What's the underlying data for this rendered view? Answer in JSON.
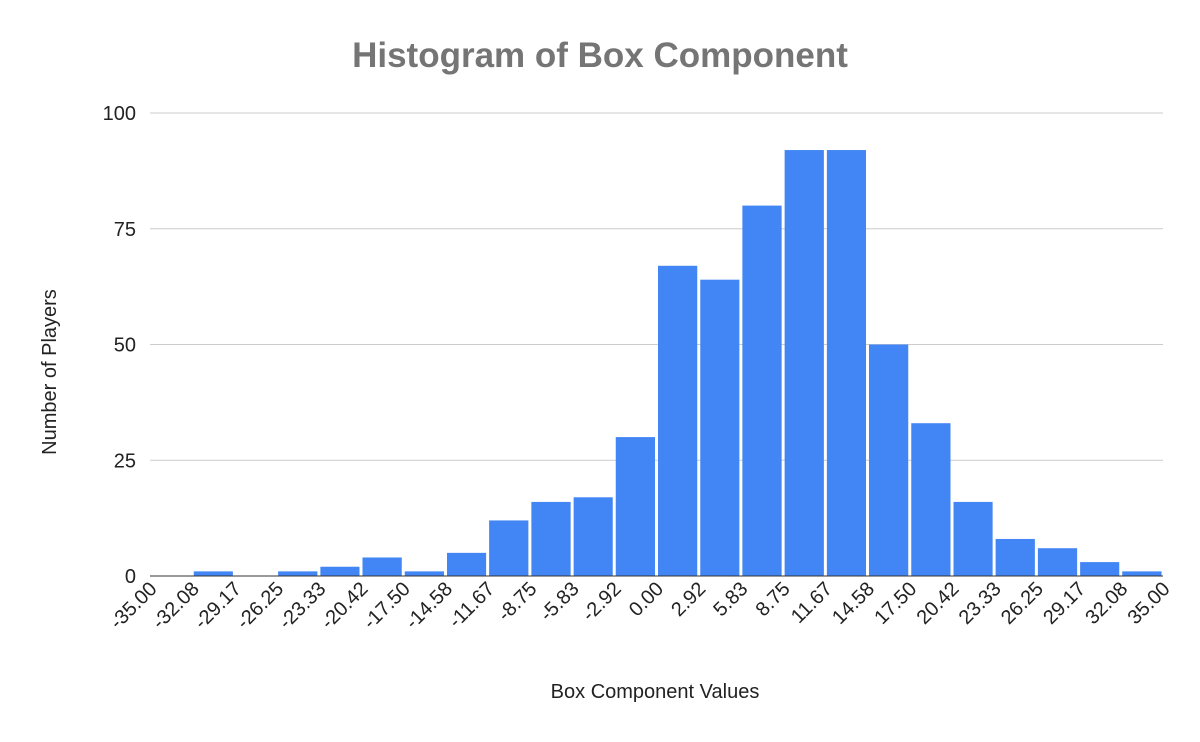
{
  "chart_data": {
    "type": "histogram",
    "title": "Histogram of Box Component",
    "x_label": "Box Component Values",
    "y_label": "Number of Players",
    "bins": [
      -35,
      -32.08,
      -29.17,
      -26.25,
      -23.33,
      -20.42,
      -17.5,
      -14.58,
      -11.67,
      -8.75,
      -5.83,
      -2.92,
      0,
      2.92,
      5.83,
      8.75,
      11.67,
      14.58,
      17.5,
      20.42,
      23.33,
      26.25,
      29.17,
      32.08,
      35
    ],
    "values": [
      0,
      1,
      0,
      1,
      2,
      4,
      1,
      5,
      12,
      16,
      17,
      30,
      67,
      64,
      80,
      92,
      92,
      50,
      33,
      16,
      8,
      6,
      3,
      1
    ],
    "color": "#4285f4",
    "xlim": [
      -35,
      35
    ],
    "xticks": [
      {
        "value": -35,
        "label": "-35.00"
      },
      {
        "value": -32.08,
        "label": "-32.08"
      },
      {
        "value": -29.17,
        "label": "-29.17"
      },
      {
        "value": -26.25,
        "label": "-26.25"
      },
      {
        "value": -23.33,
        "label": "-23.33"
      },
      {
        "value": -20.42,
        "label": "-20.42"
      },
      {
        "value": -17.5,
        "label": "-17.50"
      },
      {
        "value": -14.58,
        "label": "-14.58"
      },
      {
        "value": -11.67,
        "label": "-11.67"
      },
      {
        "value": -8.75,
        "label": "-8.75"
      },
      {
        "value": -5.83,
        "label": "-5.83"
      },
      {
        "value": -2.92,
        "label": "-2.92"
      },
      {
        "value": 0,
        "label": "0.00"
      },
      {
        "value": 2.92,
        "label": "2.92"
      },
      {
        "value": 5.83,
        "label": "5.83"
      },
      {
        "value": 8.75,
        "label": "8.75"
      },
      {
        "value": 11.67,
        "label": "11.67"
      },
      {
        "value": 14.58,
        "label": "14.58"
      },
      {
        "value": 17.5,
        "label": "17.50"
      },
      {
        "value": 20.42,
        "label": "20.42"
      },
      {
        "value": 23.33,
        "label": "23.33"
      },
      {
        "value": 26.25,
        "label": "26.25"
      },
      {
        "value": 29.17,
        "label": "29.17"
      },
      {
        "value": 32.08,
        "label": "32.08"
      },
      {
        "value": 35,
        "label": "35.00"
      }
    ],
    "ylim": [
      0,
      100
    ],
    "yticks": [
      0,
      25,
      50,
      75,
      100
    ],
    "grid": true
  }
}
